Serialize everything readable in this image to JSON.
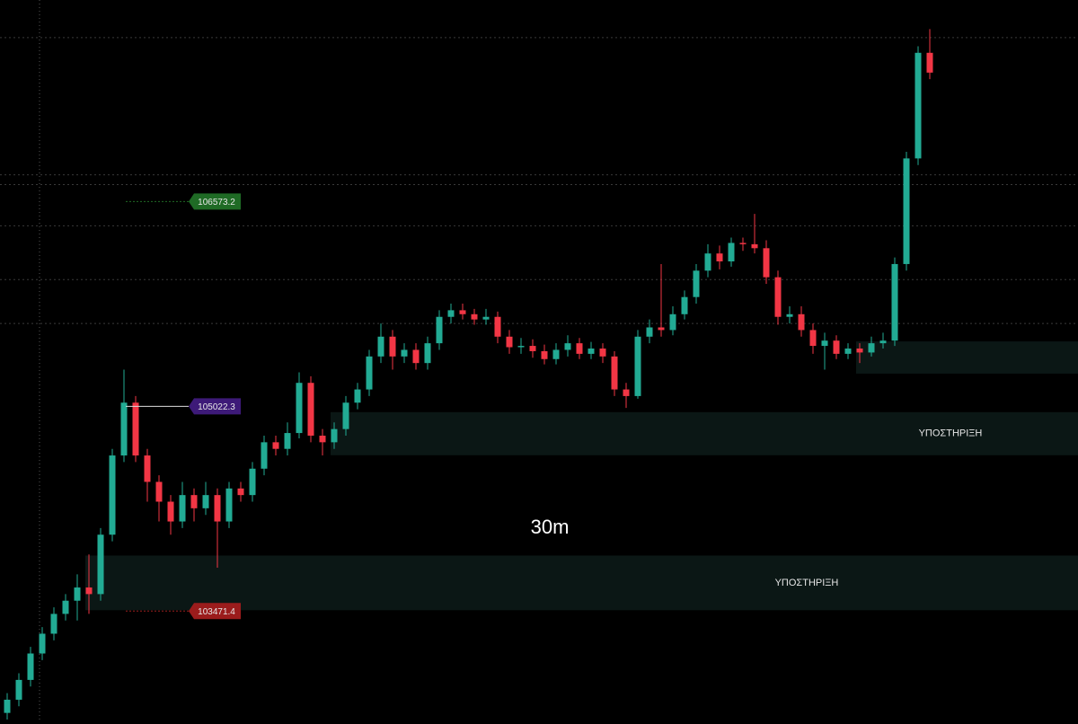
{
  "chart_data": {
    "type": "candlestick",
    "timeframe": "30m",
    "ylim": [
      102650,
      108100
    ],
    "up_color": "#22ab94",
    "down_color": "#f23645",
    "open": [
      102700,
      102800,
      102950,
      103150,
      103300,
      103450,
      103550,
      103650,
      103600,
      104050,
      104650,
      105050,
      104650,
      104450,
      104300,
      104150,
      104350,
      104250,
      104350,
      104150,
      104400,
      104350,
      104550,
      104750,
      104700,
      104820,
      105200,
      104800,
      104750,
      104850,
      105050,
      105150,
      105400,
      105550,
      105400,
      105450,
      105350,
      105500,
      105700,
      105750,
      105720,
      105680,
      105700,
      105550,
      105470,
      105480,
      105440,
      105380,
      105450,
      105500,
      105420,
      105460,
      105400,
      105150,
      105100,
      105550,
      105620,
      105600,
      105720,
      105850,
      106050,
      106180,
      106120,
      106260,
      106250,
      106220,
      106000,
      105700,
      105720,
      105600,
      105480,
      105520,
      105420,
      105460,
      105430,
      105500,
      105520,
      106100,
      106900,
      107700
    ],
    "high": [
      102850,
      103000,
      103200,
      103350,
      103500,
      103600,
      103750,
      103900,
      104100,
      104700,
      105300,
      105100,
      104700,
      104500,
      104350,
      104450,
      104400,
      104450,
      104400,
      104450,
      104450,
      104600,
      104800,
      104800,
      104900,
      105280,
      105250,
      104850,
      104900,
      105100,
      105200,
      105450,
      105650,
      105600,
      105500,
      105500,
      105550,
      105750,
      105800,
      105800,
      105760,
      105760,
      105740,
      105600,
      105540,
      105530,
      105490,
      105500,
      105560,
      105540,
      105510,
      105500,
      105440,
      105200,
      105600,
      105680,
      106100,
      105780,
      105900,
      106100,
      106250,
      106240,
      106300,
      106300,
      106480,
      106280,
      106050,
      105780,
      105780,
      105650,
      105580,
      105560,
      105500,
      105500,
      105550,
      105580,
      106150,
      106950,
      107750,
      107880
    ],
    "low": [
      102650,
      102750,
      102900,
      103100,
      103250,
      103400,
      103400,
      103450,
      103550,
      104000,
      104600,
      104600,
      104300,
      104150,
      104050,
      104100,
      104150,
      104200,
      103800,
      104100,
      104300,
      104300,
      104500,
      104650,
      104650,
      104780,
      104750,
      104650,
      104700,
      104800,
      105000,
      105100,
      105350,
      105300,
      105350,
      105300,
      105300,
      105450,
      105650,
      105680,
      105640,
      105640,
      105500,
      105420,
      105420,
      105390,
      105340,
      105340,
      105400,
      105380,
      105380,
      105350,
      105100,
      105010,
      105080,
      105500,
      105550,
      105560,
      105680,
      105800,
      106000,
      106060,
      106080,
      106200,
      106180,
      105950,
      105640,
      105650,
      105550,
      105420,
      105300,
      105380,
      105380,
      105350,
      105400,
      105460,
      105480,
      106050,
      106850,
      107500
    ],
    "close": [
      102800,
      102950,
      103150,
      103300,
      103450,
      103550,
      103650,
      103600,
      104050,
      104650,
      105050,
      104650,
      104450,
      104300,
      104150,
      104350,
      104250,
      104350,
      104150,
      104400,
      104350,
      104550,
      104750,
      104700,
      104820,
      105200,
      104800,
      104750,
      104850,
      105050,
      105150,
      105400,
      105550,
      105400,
      105450,
      105350,
      105500,
      105700,
      105750,
      105720,
      105680,
      105700,
      105550,
      105470,
      105480,
      105440,
      105380,
      105450,
      105500,
      105420,
      105460,
      105400,
      105150,
      105100,
      105550,
      105620,
      105600,
      105720,
      105850,
      106050,
      106180,
      106120,
      106260,
      106250,
      106220,
      106000,
      105700,
      105720,
      105600,
      105480,
      105520,
      105420,
      105460,
      105430,
      105500,
      105520,
      106100,
      106900,
      107700,
      107550
    ],
    "levels": [
      107815,
      106776,
      106702,
      106390,
      105982,
      105650
    ],
    "price_labels": [
      {
        "value": 106573.2,
        "color": "#1f6b25"
      },
      {
        "value": 105022.3,
        "color": "#3d1a78"
      },
      {
        "value": 103471.4,
        "color": "#9b1c1c"
      }
    ],
    "zones": [
      {
        "label": "ΥΠΟΣΤΗΡΙΞΗ",
        "top": 104978,
        "bottom": 104652,
        "start": 28
      },
      {
        "label": "ΥΠΟΣΤΗΡΙΞΗ",
        "top": 103892,
        "bottom": 103478,
        "start": 7
      },
      {
        "top": 105514,
        "bottom": 105270,
        "start": 73
      }
    ]
  }
}
